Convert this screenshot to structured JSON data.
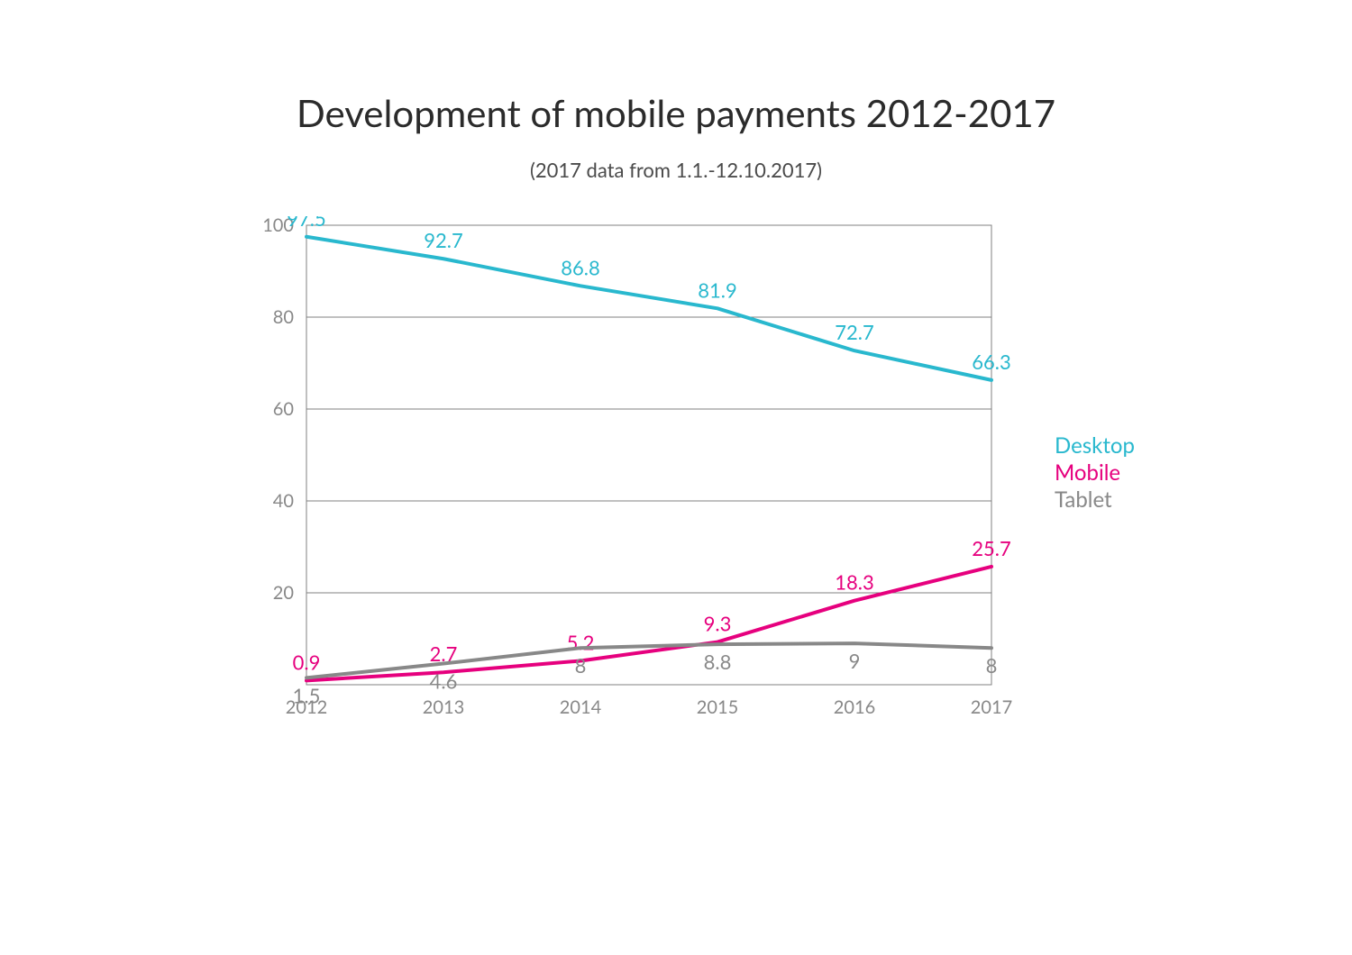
{
  "title": "Development of mobile payments 2012-2017",
  "subtitle": "(2017 data from 1.1.-12.10.2017)",
  "chart": {
    "type": "line",
    "background_color": "#ffffff",
    "plot_border_color": "#808080",
    "grid_color": "#808080",
    "grid_width": 1,
    "line_width": 4,
    "axis_tick_color": "#888888",
    "axis_tick_fontsize": 20,
    "data_label_fontsize": 22,
    "title_fontsize": 42,
    "subtitle_fontsize": 22,
    "categories": [
      "2012",
      "2013",
      "2014",
      "2015",
      "2016",
      "2017"
    ],
    "ylim": [
      0,
      100
    ],
    "yticks": [
      20,
      40,
      60,
      80,
      100
    ],
    "series": [
      {
        "name": "Desktop",
        "color": "#29b8ce",
        "values": [
          97.5,
          92.7,
          86.8,
          81.9,
          72.7,
          66.3
        ],
        "label_position": "above"
      },
      {
        "name": "Mobile",
        "color": "#e6007e",
        "values": [
          0.9,
          2.7,
          5.2,
          9.3,
          18.3,
          25.7
        ],
        "label_position": "above"
      },
      {
        "name": "Tablet",
        "color": "#888888",
        "values": [
          1.5,
          4.6,
          8,
          8.8,
          9,
          8
        ],
        "label_position": "below"
      }
    ],
    "legend": {
      "position": "right",
      "fontsize": 24
    }
  }
}
